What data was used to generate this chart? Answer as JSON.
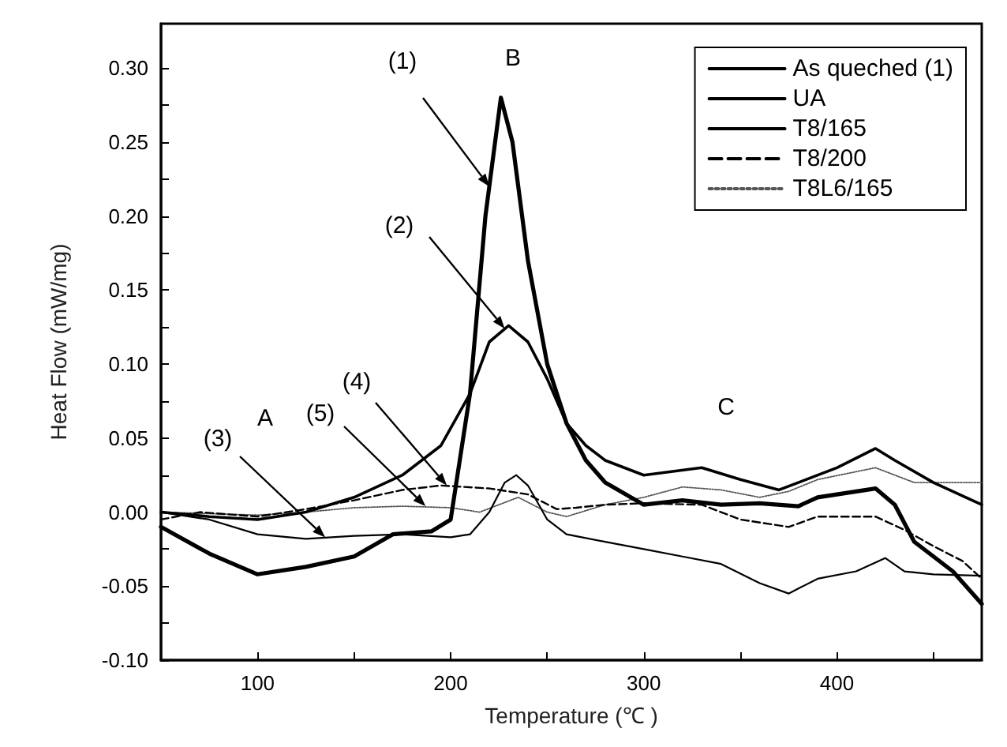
{
  "chart_data": {
    "type": "line",
    "xlabel": "Temperature (℃ )",
    "ylabel": "Heat Flow (mW/mg)",
    "xlim": [
      50,
      475
    ],
    "xticks": [
      100,
      {
        "value": 150,
        "label": null
      },
      200,
      {
        "value": 250,
        "label": null
      },
      300,
      {
        "value": 350,
        "label": null
      },
      400,
      {
        "value": 450,
        "label": null
      }
    ],
    "ylim": [
      -0.1,
      0.33
    ],
    "yticks": [
      {
        "value": -0.1,
        "label": "-0.10"
      },
      {
        "value": -0.075,
        "label": null
      },
      -0.05,
      {
        "value": -0.025,
        "label": null
      },
      {
        "value": 0.0,
        "label": "0.00"
      },
      {
        "value": 0.025,
        "label": null
      },
      0.05,
      {
        "value": 0.075,
        "label": null
      },
      {
        "value": 0.1,
        "label": "0.10"
      },
      {
        "value": 0.125,
        "label": null
      },
      0.15,
      {
        "value": 0.175,
        "label": null
      },
      {
        "value": 0.2,
        "label": "0.20"
      },
      {
        "value": 0.225,
        "label": null
      },
      0.25,
      {
        "value": 0.275,
        "label": null
      },
      {
        "value": 0.3,
        "label": "0.30"
      }
    ],
    "grid": false,
    "legend": "top right",
    "marker": "none",
    "series": [
      {
        "name": "As queched (1)",
        "color": "#000000",
        "line_style": "solid",
        "x": [
          50,
          75,
          100,
          125,
          150,
          170,
          190,
          200,
          210,
          218,
          226,
          232,
          240,
          250,
          260,
          270,
          280,
          300,
          320,
          340,
          360,
          380,
          390,
          400,
          420,
          430,
          440,
          460,
          475
        ],
        "values": [
          -0.01,
          -0.028,
          -0.042,
          -0.037,
          -0.03,
          -0.015,
          -0.013,
          -0.005,
          0.08,
          0.2,
          0.28,
          0.25,
          0.17,
          0.1,
          0.06,
          0.035,
          0.02,
          0.005,
          0.008,
          0.005,
          0.006,
          0.004,
          0.01,
          0.012,
          0.016,
          0.005,
          -0.02,
          -0.04,
          -0.062
        ]
      },
      {
        "name": "UA",
        "color": "#000000",
        "line_style": "solid",
        "x": [
          50,
          75,
          100,
          125,
          150,
          175,
          195,
          210,
          220,
          230,
          240,
          250,
          260,
          270,
          280,
          300,
          330,
          350,
          370,
          380,
          400,
          420,
          430,
          450,
          475
        ],
        "values": [
          0.0,
          -0.003,
          -0.005,
          0.0,
          0.01,
          0.025,
          0.045,
          0.08,
          0.115,
          0.126,
          0.115,
          0.09,
          0.06,
          0.045,
          0.035,
          0.025,
          0.03,
          0.022,
          0.015,
          0.02,
          0.03,
          0.043,
          0.035,
          0.02,
          0.005
        ]
      },
      {
        "name": "T8/165",
        "color": "#000000",
        "line_style": "solid",
        "x": [
          50,
          75,
          100,
          125,
          150,
          175,
          200,
          210,
          220,
          228,
          234,
          240,
          250,
          260,
          280,
          300,
          320,
          340,
          360,
          375,
          390,
          410,
          425,
          435,
          450,
          475
        ],
        "values": [
          0.0,
          -0.005,
          -0.015,
          -0.018,
          -0.016,
          -0.015,
          -0.017,
          -0.015,
          0.0,
          0.02,
          0.025,
          0.018,
          -0.005,
          -0.015,
          -0.02,
          -0.025,
          -0.03,
          -0.035,
          -0.048,
          -0.055,
          -0.045,
          -0.04,
          -0.031,
          -0.04,
          -0.042,
          -0.043
        ]
      },
      {
        "name": "T8/200",
        "color": "#000000",
        "line_style": "dashed",
        "x": [
          50,
          70,
          100,
          125,
          150,
          175,
          195,
          220,
          240,
          255,
          265,
          280,
          300,
          330,
          350,
          375,
          390,
          420,
          435,
          450,
          465,
          475
        ],
        "values": [
          -0.005,
          0.0,
          -0.003,
          0.002,
          0.008,
          0.015,
          0.018,
          0.016,
          0.012,
          0.002,
          0.003,
          0.005,
          0.006,
          0.005,
          -0.005,
          -0.01,
          -0.003,
          -0.003,
          -0.012,
          -0.023,
          -0.033,
          -0.045
        ]
      },
      {
        "name": "T8L6/165",
        "color": "#555555",
        "line_style": "dotted",
        "x": [
          50,
          100,
          125,
          150,
          175,
          200,
          215,
          225,
          235,
          250,
          260,
          280,
          300,
          320,
          340,
          360,
          375,
          390,
          420,
          440,
          460,
          475
        ],
        "values": [
          0.0,
          -0.002,
          0.0,
          0.003,
          0.004,
          0.003,
          0.0,
          0.005,
          0.01,
          0.0,
          -0.003,
          0.005,
          0.01,
          0.017,
          0.015,
          0.01,
          0.014,
          0.022,
          0.03,
          0.02,
          0.02,
          0.02
        ]
      }
    ],
    "annotations": [
      {
        "text": "(1)",
        "x": 220,
        "y": 0.22
      },
      {
        "text": "(2)",
        "x": 228,
        "y": 0.124
      },
      {
        "text": "(3)",
        "x": 135,
        "y": -0.017
      },
      {
        "text": "(4)",
        "x": 198,
        "y": 0.018
      },
      {
        "text": "(5)",
        "x": 187,
        "y": 0.004
      },
      "A",
      "B",
      "C"
    ]
  }
}
